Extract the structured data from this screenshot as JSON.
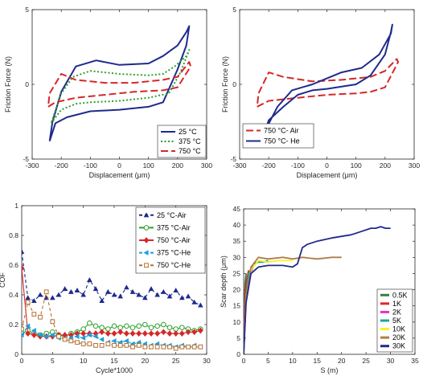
{
  "chart_data": [
    {
      "type": "line",
      "xlabel": "Displacement (μm)",
      "ylabel": "Friction Force (N)",
      "xlim": [
        -300,
        300
      ],
      "ylim": [
        -5,
        5
      ],
      "xticks": [
        "-300",
        "-200",
        "-100",
        "0",
        "100",
        "200",
        "300"
      ],
      "yticks": [
        "-5",
        "0",
        "5"
      ],
      "legend_position": "bottom-right",
      "series": [
        {
          "name": "25 °C",
          "color": "#1f2a8c",
          "dash": "solid",
          "closed": true,
          "points": [
            [
              -240,
              -3.8
            ],
            [
              -220,
              -2.6
            ],
            [
              -180,
              -2.2
            ],
            [
              -100,
              -1.8
            ],
            [
              0,
              -1.7
            ],
            [
              100,
              -1.5
            ],
            [
              150,
              -1.2
            ],
            [
              200,
              1.0
            ],
            [
              230,
              2.6
            ],
            [
              240,
              3.9
            ],
            [
              230,
              3.5
            ],
            [
              200,
              2.6
            ],
            [
              150,
              1.9
            ],
            [
              100,
              1.4
            ],
            [
              0,
              1.3
            ],
            [
              -80,
              1.6
            ],
            [
              -150,
              1.2
            ],
            [
              -200,
              -0.5
            ],
            [
              -230,
              -2.5
            ],
            [
              -240,
              -3.8
            ]
          ]
        },
        {
          "name": "375 °C",
          "color": "#2ca02c",
          "dash": "dotted",
          "closed": true,
          "points": [
            [
              -235,
              -2.6
            ],
            [
              -200,
              -1.7
            ],
            [
              -150,
              -1.3
            ],
            [
              -100,
              -1.2
            ],
            [
              0,
              -1.1
            ],
            [
              100,
              -0.9
            ],
            [
              170,
              -0.6
            ],
            [
              210,
              0.8
            ],
            [
              240,
              2.3
            ],
            [
              230,
              1.9
            ],
            [
              190,
              1.2
            ],
            [
              150,
              0.7
            ],
            [
              100,
              0.6
            ],
            [
              0,
              0.7
            ],
            [
              -100,
              0.9
            ],
            [
              -160,
              0.5
            ],
            [
              -200,
              -0.6
            ],
            [
              -235,
              -2.6
            ]
          ]
        },
        {
          "name": "750 °C",
          "color": "#d62728",
          "dash": "dashed",
          "closed": true,
          "points": [
            [
              -245,
              -1.5
            ],
            [
              -220,
              -1.2
            ],
            [
              -150,
              -0.9
            ],
            [
              -50,
              -0.7
            ],
            [
              50,
              -0.5
            ],
            [
              150,
              -0.4
            ],
            [
              200,
              -0.2
            ],
            [
              245,
              1.2
            ],
            [
              240,
              1.5
            ],
            [
              200,
              0.5
            ],
            [
              150,
              0.3
            ],
            [
              50,
              0.1
            ],
            [
              -50,
              0.1
            ],
            [
              -150,
              0.3
            ],
            [
              -200,
              0.7
            ],
            [
              -240,
              -0.6
            ],
            [
              -245,
              -1.5
            ]
          ]
        }
      ]
    },
    {
      "type": "line",
      "xlabel": "Displacement (μm)",
      "ylabel": "Friction Force (N)",
      "xlim": [
        -300,
        300
      ],
      "ylim": [
        -5,
        5
      ],
      "xticks": [
        "-300",
        "-200",
        "-100",
        "0",
        "100",
        "200",
        "300"
      ],
      "yticks": [
        "-5",
        "0",
        "5"
      ],
      "legend_position": "bottom-left",
      "series": [
        {
          "name": "750 °C- Air",
          "color": "#d62728",
          "dash": "dashed",
          "closed": true,
          "points": [
            [
              -240,
              -1.5
            ],
            [
              -200,
              -1.1
            ],
            [
              -100,
              -0.9
            ],
            [
              0,
              -0.7
            ],
            [
              100,
              -0.6
            ],
            [
              150,
              -0.5
            ],
            [
              200,
              -0.2
            ],
            [
              245,
              1.5
            ],
            [
              240,
              1.7
            ],
            [
              200,
              0.9
            ],
            [
              150,
              0.5
            ],
            [
              50,
              0.3
            ],
            [
              -50,
              0.2
            ],
            [
              -150,
              0.5
            ],
            [
              -200,
              0.8
            ],
            [
              -235,
              -0.6
            ],
            [
              -240,
              -1.5
            ]
          ]
        },
        {
          "name": "750 °C- He",
          "color": "#1f2a8c",
          "dash": "solid",
          "closed": false,
          "points": [
            [
              -230,
              -4.1
            ],
            [
              -200,
              -2.4
            ],
            [
              -150,
              -1.5
            ],
            [
              -100,
              -0.7
            ],
            [
              -50,
              -0.4
            ],
            [
              0,
              -0.3
            ],
            [
              100,
              0.0
            ],
            [
              150,
              0.6
            ],
            [
              200,
              2.0
            ],
            [
              220,
              3.5
            ],
            [
              225,
              4.0
            ],
            [
              220,
              3.4
            ],
            [
              180,
              2.0
            ],
            [
              120,
              1.1
            ],
            [
              50,
              0.8
            ],
            [
              0,
              0.4
            ],
            [
              -50,
              0.0
            ],
            [
              -120,
              -0.4
            ],
            [
              -170,
              -1.5
            ],
            [
              -210,
              -3.0
            ],
            [
              -230,
              -4.1
            ]
          ]
        }
      ]
    },
    {
      "type": "line",
      "xlabel": "Cycle*1000",
      "ylabel": "COF",
      "xlim": [
        0,
        30
      ],
      "ylim": [
        0,
        1
      ],
      "xticks": [
        "0",
        "5",
        "10",
        "15",
        "20",
        "25",
        "30"
      ],
      "yticks": [
        "0",
        "0.2",
        "0.4",
        "0.6",
        "0.8",
        "1"
      ],
      "legend_position": "top-right",
      "series": [
        {
          "name": "25 °C-Air",
          "color": "#1f2a8c",
          "dash": "dashed",
          "marker": "triangle",
          "x": [
            0,
            1,
            2,
            3,
            4,
            5,
            6,
            7,
            8,
            9,
            10,
            11,
            12,
            13,
            14,
            15,
            16,
            17,
            18,
            19,
            20,
            21,
            22,
            23,
            24,
            25,
            26,
            27,
            28,
            29
          ],
          "values": [
            0.69,
            0.38,
            0.36,
            0.4,
            0.38,
            0.38,
            0.4,
            0.44,
            0.42,
            0.43,
            0.4,
            0.5,
            0.44,
            0.36,
            0.42,
            0.4,
            0.39,
            0.45,
            0.42,
            0.4,
            0.38,
            0.44,
            0.4,
            0.42,
            0.39,
            0.43,
            0.38,
            0.39,
            0.35,
            0.33
          ]
        },
        {
          "name": "375 °C-Air",
          "color": "#2ca02c",
          "dash": "solid",
          "marker": "circle",
          "x": [
            0,
            1,
            2,
            3,
            4,
            5,
            6,
            7,
            8,
            9,
            10,
            11,
            12,
            13,
            14,
            15,
            16,
            17,
            18,
            19,
            20,
            21,
            22,
            23,
            24,
            25,
            26,
            27,
            28,
            29
          ],
          "values": [
            0.14,
            0.16,
            0.14,
            0.13,
            0.14,
            0.15,
            0.13,
            0.12,
            0.14,
            0.15,
            0.17,
            0.21,
            0.19,
            0.18,
            0.17,
            0.19,
            0.18,
            0.19,
            0.18,
            0.19,
            0.2,
            0.18,
            0.19,
            0.2,
            0.18,
            0.17,
            0.18,
            0.17,
            0.16,
            0.17
          ]
        },
        {
          "name": "750 °C-Air",
          "color": "#d62728",
          "dash": "solid",
          "marker": "diamond",
          "x": [
            0,
            1,
            2,
            3,
            4,
            5,
            6,
            7,
            8,
            9,
            10,
            11,
            12,
            13,
            14,
            15,
            16,
            17,
            18,
            19,
            20,
            21,
            22,
            23,
            24,
            25,
            26,
            27,
            28,
            29
          ],
          "values": [
            0.58,
            0.14,
            0.13,
            0.12,
            0.12,
            0.12,
            0.13,
            0.13,
            0.13,
            0.14,
            0.14,
            0.14,
            0.14,
            0.15,
            0.14,
            0.14,
            0.15,
            0.14,
            0.14,
            0.14,
            0.14,
            0.14,
            0.14,
            0.15,
            0.14,
            0.14,
            0.14,
            0.15,
            0.15,
            0.16
          ]
        },
        {
          "name": "375 °C-He",
          "color": "#1a9ee0",
          "dash": "dashed",
          "marker": "triangle-left",
          "x": [
            0,
            1,
            2,
            3,
            4,
            5,
            6,
            7,
            8,
            9,
            10,
            11,
            12,
            13,
            14,
            15,
            16,
            17,
            18,
            19,
            20,
            21,
            22,
            23,
            24,
            25,
            26,
            27,
            28,
            29
          ],
          "values": [
            0.13,
            0.19,
            0.16,
            0.13,
            0.12,
            0.13,
            0.11,
            0.1,
            0.11,
            0.12,
            0.11,
            0.13,
            0.12,
            0.1,
            0.08,
            0.09,
            0.08,
            0.09,
            0.07,
            0.08,
            0.07,
            0.06,
            0.07,
            0.06,
            0.06,
            0.05,
            0.06,
            0.05,
            0.06,
            0.05
          ]
        },
        {
          "name": "750 °C-He",
          "color": "#b5702f",
          "dash": "dashed",
          "marker": "square",
          "x": [
            0,
            1,
            2,
            3,
            4,
            5,
            6,
            7,
            8,
            9,
            10,
            11,
            12,
            13,
            14,
            15,
            16,
            17,
            18,
            19,
            20,
            21,
            22,
            23,
            24,
            25,
            26,
            27,
            28,
            29
          ],
          "values": [
            0.17,
            0.35,
            0.27,
            0.25,
            0.42,
            0.22,
            0.12,
            0.1,
            0.09,
            0.08,
            0.07,
            0.07,
            0.06,
            0.06,
            0.07,
            0.06,
            0.06,
            0.06,
            0.05,
            0.06,
            0.05,
            0.05,
            0.05,
            0.05,
            0.05,
            0.04,
            0.05,
            0.05,
            0.05,
            0.05
          ]
        }
      ]
    },
    {
      "type": "line",
      "xlabel": "S (m)",
      "ylabel": "Scar depth (μm)",
      "xlim": [
        0,
        35
      ],
      "ylim": [
        0,
        45
      ],
      "xticks": [
        "0",
        "5",
        "10",
        "15",
        "20",
        "25",
        "30",
        "35"
      ],
      "yticks": [
        "0",
        "5",
        "10",
        "15",
        "20",
        "25",
        "30",
        "35",
        "40",
        "45"
      ],
      "legend_position": "bottom-right",
      "series": [
        {
          "name": "0.5K",
          "color": "#3a7d44",
          "x": [
            0,
            0.15,
            0.3,
            0.5
          ],
          "values": [
            0,
            14,
            22,
            25
          ]
        },
        {
          "name": "1K",
          "color": "#e8232a",
          "x": [
            0,
            0.2,
            0.5,
            1.0
          ],
          "values": [
            0,
            12,
            22,
            26
          ]
        },
        {
          "name": "2K",
          "color": "#e631c9",
          "x": [
            0,
            0.5,
            1.0,
            2.0
          ],
          "values": [
            0,
            18,
            24,
            27
          ]
        },
        {
          "name": "5K",
          "color": "#13a79c",
          "x": [
            0,
            0.5,
            1.0,
            2.0,
            3.0,
            4.0,
            5.0
          ],
          "values": [
            0,
            18,
            25,
            28,
            28.5,
            28.5,
            29
          ]
        },
        {
          "name": "10K",
          "color": "#f5f224",
          "x": [
            0,
            0.5,
            1.5,
            3,
            5,
            7,
            10
          ],
          "values": [
            0,
            18,
            26,
            29,
            28.5,
            29,
            29
          ]
        },
        {
          "name": "20K",
          "color": "#b07c4a",
          "x": [
            0,
            0.5,
            1.5,
            3,
            5,
            8,
            10,
            12,
            15,
            18,
            20
          ],
          "values": [
            0,
            18,
            27,
            30,
            29.5,
            30,
            29.5,
            30,
            29.5,
            30,
            30
          ]
        },
        {
          "name": "30K",
          "color": "#1f2a8c",
          "x": [
            0,
            0.5,
            1.5,
            3,
            5,
            8,
            10,
            11,
            12,
            13,
            15,
            18,
            20,
            22,
            24,
            26,
            27,
            28,
            29,
            30
          ],
          "values": [
            0,
            16,
            25,
            27,
            27.5,
            27.5,
            27,
            28,
            33,
            34,
            35,
            36,
            36.5,
            37,
            38,
            39,
            39,
            39.5,
            39,
            39
          ]
        }
      ]
    }
  ]
}
